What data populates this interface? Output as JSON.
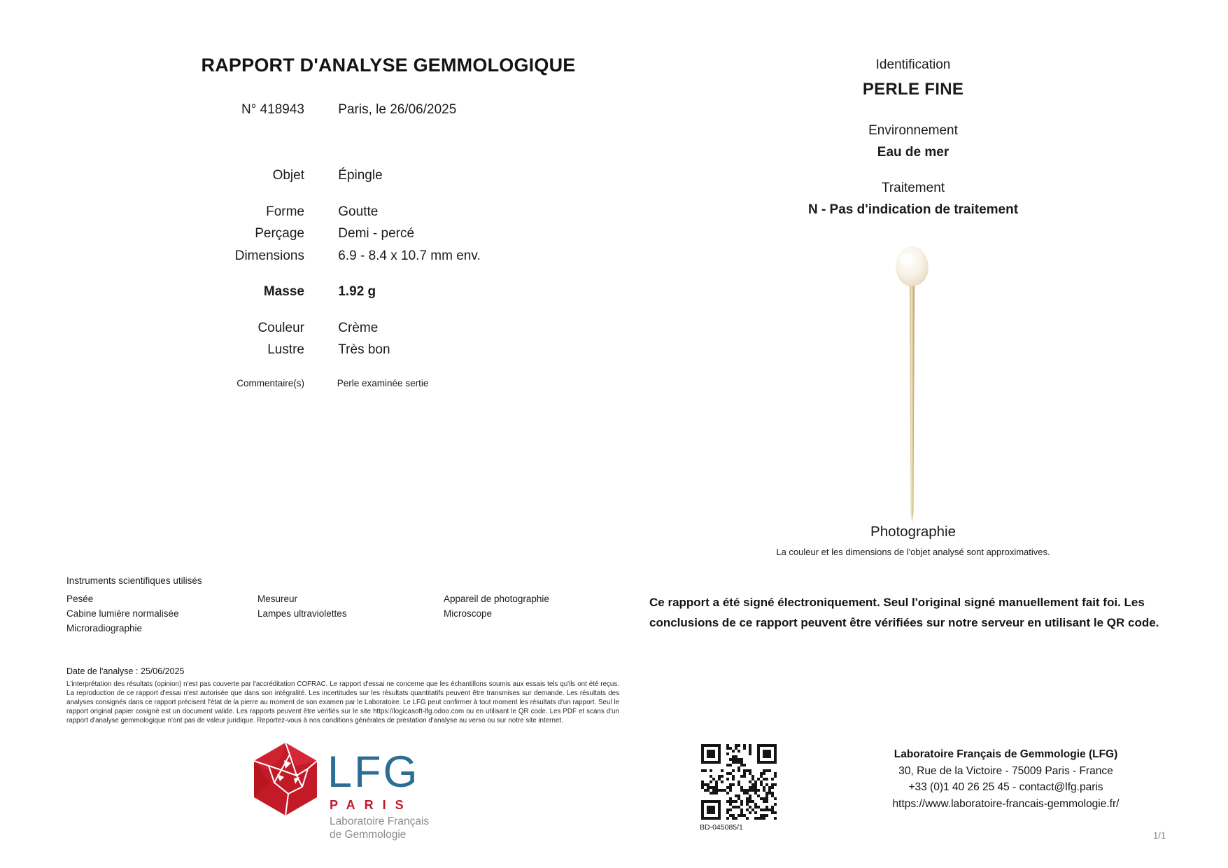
{
  "header": {
    "title": "RAPPORT D'ANALYSE GEMMOLOGIQUE",
    "report_number": "N° 418943",
    "place_date": "Paris, le 26/06/2025"
  },
  "specs": {
    "objet": {
      "label": "Objet",
      "value": "Épingle"
    },
    "forme": {
      "label": "Forme",
      "value": "Goutte"
    },
    "percage": {
      "label": "Perçage",
      "value": "Demi - percé"
    },
    "dimensions": {
      "label": "Dimensions",
      "value": "6.9 - 8.4 x 10.7 mm env."
    },
    "masse": {
      "label": "Masse",
      "value": "1.92 g"
    },
    "couleur": {
      "label": "Couleur",
      "value": "Crème"
    },
    "lustre": {
      "label": "Lustre",
      "value": "Très bon"
    },
    "commentaires": {
      "label": "Commentaire(s)",
      "value": "Perle examinée sertie"
    }
  },
  "identification": {
    "heading": "Identification",
    "value": "PERLE FINE",
    "environment_heading": "Environnement",
    "environment_value": "Eau de mer",
    "treatment_heading": "Traitement",
    "treatment_value": "N - Pas d'indication de traitement"
  },
  "photo": {
    "heading": "Photographie",
    "caption": "La couleur et les dimensions de l'objet analysé sont approximatives."
  },
  "instruments": {
    "heading": "Instruments scientifiques utilisés",
    "columns": [
      [
        "Pesée",
        "Cabine lumière normalisée",
        "Microradiographie"
      ],
      [
        "Mesureur",
        "Lampes ultraviolettes"
      ],
      [
        "Appareil de photographie",
        "Microscope"
      ]
    ]
  },
  "signature_notice": "Ce rapport a été signé électroniquement. Seul l'original signé manuellement fait foi. Les conclusions de ce rapport peuvent être vérifiées sur notre serveur en utilisant le QR code.",
  "legal": {
    "analysis_date": "Date de l'analyse : 25/06/2025",
    "disclaimer": "L'interprétation des résultats (opinion) n'est pas couverte par l'accréditation COFRAC. Le rapport d'essai ne concerne que les échantillons soumis aux essais tels qu'ils ont été reçus. La reproduction de ce rapport d'essai n'est autorisée que dans son intégralité. Les incertitudes sur les résultats quantitatifs peuvent être transmises sur demande. Les résultats des analyses consignés dans ce rapport précisent l'état de la pierre au moment de son examen par le Laboratoire. Le LFG peut confirmer à tout moment les résultats d'un rapport. Seul le rapport original papier cosigné est un document valide. Les rapports peuvent être vérifiés sur le site https://logicasoft-lfg.odoo.com ou en utilisant le QR code. Les PDF et scans d'un rapport d'analyse gemmologique n'ont pas de valeur juridique. Reportez-vous à nos conditions générales de prestation d'analyse au verso ou sur notre site internet."
  },
  "logo": {
    "name": "LFG",
    "city": "PARIS",
    "subtitle_line1": "Laboratoire Français",
    "subtitle_line2": "de Gemmologie",
    "blue": "#2b6d93",
    "red": "#c41a2b",
    "gray": "#8c8c8c"
  },
  "qr": {
    "code_label": "BD-045085/1"
  },
  "footer_contact": {
    "name": "Laboratoire Français de Gemmologie (LFG)",
    "address": "30, Rue de la Victoire - 75009 Paris - France",
    "phone_email": "+33 (0)1 40 26 25 45 - contact@lfg.paris",
    "website": "https://www.laboratoire-francais-gemmologie.fr/"
  },
  "page_indicator": "1/1"
}
